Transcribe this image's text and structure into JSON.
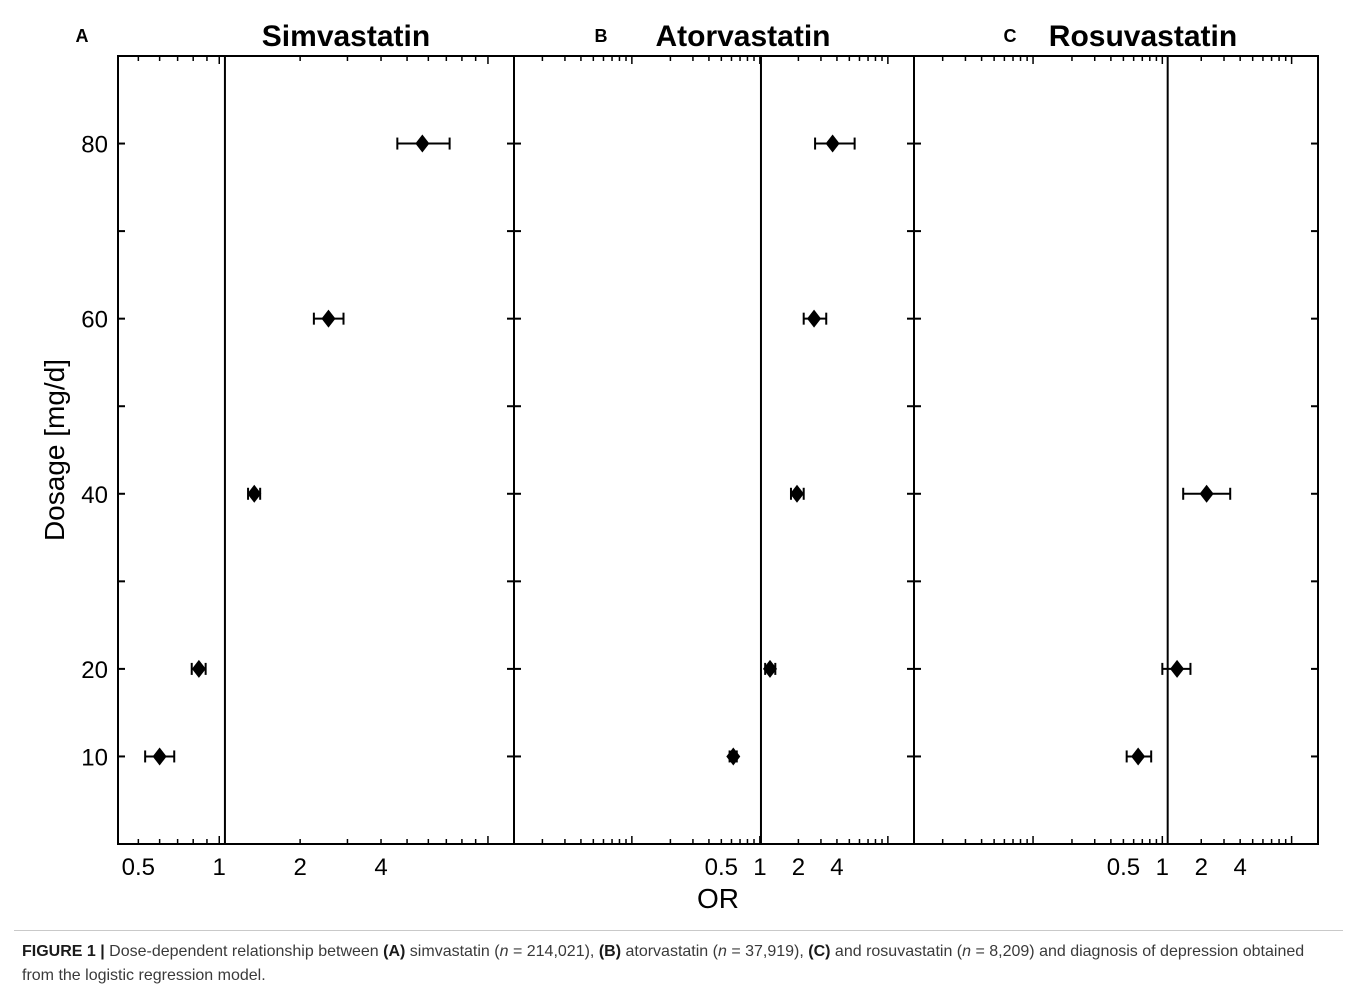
{
  "chart_data": {
    "type": "scatter",
    "shared_ylabel": "Dosage [mg/d]",
    "shared_xlabel": "OR",
    "y_ticks": [
      10,
      20,
      40,
      60,
      80
    ],
    "ylim": [
      0,
      90
    ],
    "x_scale": "log2",
    "panels": [
      {
        "letter": "A",
        "title": "Simvastatin",
        "xlim": [
          0.42,
          12.5
        ],
        "x_tick_values": [
          0.5,
          1,
          2,
          4
        ],
        "x_tick_labels": [
          "0.5",
          "1",
          "2",
          "4"
        ],
        "reference_line": 1.05,
        "points": [
          {
            "dose": 10,
            "or": 0.6,
            "lo": 0.53,
            "hi": 0.68
          },
          {
            "dose": 20,
            "or": 0.84,
            "lo": 0.79,
            "hi": 0.89
          },
          {
            "dose": 40,
            "or": 1.35,
            "lo": 1.28,
            "hi": 1.42
          },
          {
            "dose": 60,
            "or": 2.55,
            "lo": 2.25,
            "hi": 2.9
          },
          {
            "dose": 80,
            "or": 5.7,
            "lo": 4.6,
            "hi": 7.2
          }
        ]
      },
      {
        "letter": "B",
        "title": "Atorvastatin",
        "xlim": [
          0.012,
          16
        ],
        "x_tick_values": [
          0.5,
          1,
          2,
          4
        ],
        "x_tick_labels": [
          "0.5",
          "1",
          "2",
          "4"
        ],
        "reference_line": 1.02,
        "points": [
          {
            "dose": 10,
            "or": 0.62,
            "lo": 0.58,
            "hi": 0.66
          },
          {
            "dose": 20,
            "or": 1.2,
            "lo": 1.1,
            "hi": 1.32
          },
          {
            "dose": 40,
            "or": 1.95,
            "lo": 1.75,
            "hi": 2.2
          },
          {
            "dose": 60,
            "or": 2.65,
            "lo": 2.2,
            "hi": 3.3
          },
          {
            "dose": 80,
            "or": 3.7,
            "lo": 2.7,
            "hi": 5.5
          }
        ]
      },
      {
        "letter": "C",
        "title": "Rosuvastatin",
        "xlim": [
          0.012,
          16
        ],
        "x_tick_values": [
          0.5,
          1,
          2,
          4
        ],
        "x_tick_labels": [
          "0.5",
          "1",
          "2",
          "4"
        ],
        "reference_line": 1.1,
        "points": [
          {
            "dose": 10,
            "or": 0.65,
            "lo": 0.53,
            "hi": 0.82
          },
          {
            "dose": 20,
            "or": 1.3,
            "lo": 1.0,
            "hi": 1.65
          },
          {
            "dose": 40,
            "or": 2.2,
            "lo": 1.45,
            "hi": 3.35
          }
        ]
      }
    ]
  },
  "caption": {
    "label": "FIGURE 1 |",
    "text_1": " Dose-dependent relationship between ",
    "bold_a": "(A)",
    "text_2": " simvastatin (",
    "n_symbol_1": "n",
    "text_3": " = 214,021), ",
    "bold_b": "(B)",
    "text_4": " atorvastatin (",
    "n_symbol_2": "n",
    "text_5": " = 37,919), ",
    "bold_c": "(C)",
    "text_6": " and rosuvastatin (",
    "n_symbol_3": "n",
    "text_7": " = 8,209) and diagnosis of depression obtained from the logistic regression model."
  }
}
